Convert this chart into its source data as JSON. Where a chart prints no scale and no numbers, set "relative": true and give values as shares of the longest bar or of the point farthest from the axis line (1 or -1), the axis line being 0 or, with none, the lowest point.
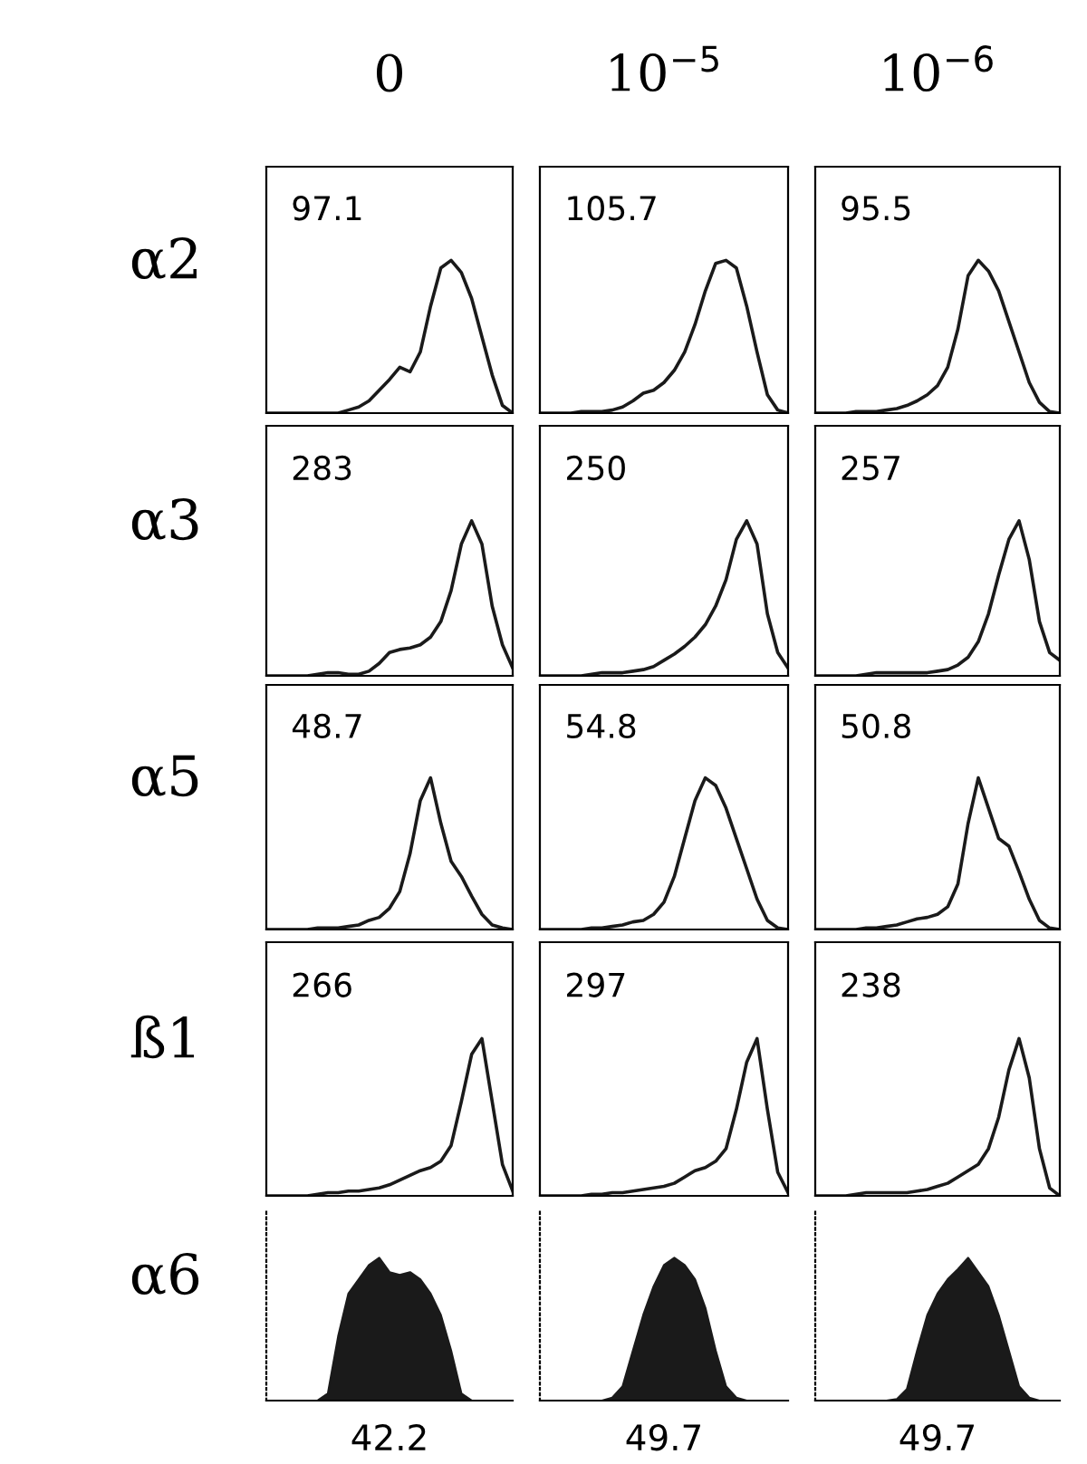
{
  "chart_data": [
    {
      "type": "line",
      "title": "0",
      "ylabel": "α2",
      "relative": true,
      "color": "#1a1a1a",
      "annotations": [
        "97.1"
      ],
      "categories": [
        null,
        null,
        null,
        null,
        null,
        null,
        null,
        null,
        null,
        null,
        null,
        null,
        null,
        null,
        null,
        null,
        null,
        null,
        null,
        null,
        null,
        null,
        null,
        null,
        null
      ],
      "values": [
        0,
        0,
        0,
        0,
        0,
        0,
        0,
        0,
        0.02,
        0.04,
        0.08,
        0.15,
        0.22,
        0.3,
        0.27,
        0.4,
        0.7,
        0.95,
        1,
        0.92,
        0.75,
        0.5,
        0.25,
        0.05,
        0
      ]
    },
    {
      "type": "line",
      "title": "10$^{−5}$",
      "relative": true,
      "color": "#1a1a1a",
      "annotations": [
        "105.7"
      ],
      "categories": [
        null,
        null,
        null,
        null,
        null,
        null,
        null,
        null,
        null,
        null,
        null,
        null,
        null,
        null,
        null,
        null,
        null,
        null,
        null,
        null,
        null,
        null,
        null,
        null,
        null
      ],
      "values": [
        0,
        0,
        0,
        0,
        0.01,
        0.01,
        0.01,
        0.02,
        0.04,
        0.08,
        0.13,
        0.15,
        0.2,
        0.28,
        0.4,
        0.58,
        0.8,
        0.98,
        1,
        0.95,
        0.7,
        0.4,
        0.12,
        0.02,
        0
      ]
    },
    {
      "type": "line",
      "title": "10$^{−6}$",
      "relative": true,
      "color": "#1a1a1a",
      "annotations": [
        "95.5"
      ],
      "categories": [
        null,
        null,
        null,
        null,
        null,
        null,
        null,
        null,
        null,
        null,
        null,
        null,
        null,
        null,
        null,
        null,
        null,
        null,
        null,
        null,
        null,
        null,
        null,
        null,
        null
      ],
      "values": [
        0,
        0,
        0,
        0,
        0.01,
        0.01,
        0.01,
        0.02,
        0.03,
        0.05,
        0.08,
        0.12,
        0.18,
        0.3,
        0.55,
        0.9,
        1,
        0.93,
        0.8,
        0.6,
        0.4,
        0.2,
        0.07,
        0.01,
        0
      ]
    },
    {
      "type": "line",
      "ylabel": "α3",
      "relative": true,
      "color": "#1a1a1a",
      "annotations": [
        "283"
      ],
      "categories": [
        null,
        null,
        null,
        null,
        null,
        null,
        null,
        null,
        null,
        null,
        null,
        null,
        null,
        null,
        null,
        null,
        null,
        null,
        null,
        null,
        null,
        null,
        null,
        null,
        null
      ],
      "values": [
        0,
        0,
        0,
        0,
        0,
        0.01,
        0.02,
        0.02,
        0.01,
        0.01,
        0.03,
        0.08,
        0.15,
        0.17,
        0.18,
        0.2,
        0.25,
        0.35,
        0.55,
        0.85,
        1,
        0.85,
        0.45,
        0.2,
        0.05
      ]
    },
    {
      "type": "line",
      "relative": true,
      "color": "#1a1a1a",
      "annotations": [
        "250"
      ],
      "categories": [
        null,
        null,
        null,
        null,
        null,
        null,
        null,
        null,
        null,
        null,
        null,
        null,
        null,
        null,
        null,
        null,
        null,
        null,
        null,
        null,
        null,
        null,
        null,
        null,
        null
      ],
      "values": [
        0,
        0,
        0,
        0,
        0,
        0.01,
        0.02,
        0.02,
        0.02,
        0.03,
        0.04,
        0.06,
        0.1,
        0.14,
        0.19,
        0.25,
        0.33,
        0.45,
        0.62,
        0.88,
        1,
        0.85,
        0.4,
        0.15,
        0.05
      ]
    },
    {
      "type": "line",
      "relative": true,
      "color": "#1a1a1a",
      "annotations": [
        "257"
      ],
      "categories": [
        null,
        null,
        null,
        null,
        null,
        null,
        null,
        null,
        null,
        null,
        null,
        null,
        null,
        null,
        null,
        null,
        null,
        null,
        null,
        null,
        null,
        null,
        null,
        null,
        null
      ],
      "values": [
        0,
        0,
        0,
        0,
        0,
        0.01,
        0.02,
        0.02,
        0.02,
        0.02,
        0.02,
        0.02,
        0.03,
        0.04,
        0.07,
        0.12,
        0.22,
        0.4,
        0.65,
        0.88,
        1,
        0.75,
        0.35,
        0.15,
        0.1
      ]
    },
    {
      "type": "line",
      "ylabel": "α5",
      "relative": true,
      "color": "#1a1a1a",
      "annotations": [
        "48.7"
      ],
      "categories": [
        null,
        null,
        null,
        null,
        null,
        null,
        null,
        null,
        null,
        null,
        null,
        null,
        null,
        null,
        null,
        null,
        null,
        null,
        null,
        null,
        null,
        null,
        null,
        null,
        null
      ],
      "values": [
        0,
        0,
        0,
        0,
        0,
        0.01,
        0.01,
        0.01,
        0.02,
        0.03,
        0.06,
        0.08,
        0.14,
        0.25,
        0.5,
        0.85,
        1,
        0.7,
        0.45,
        0.35,
        0.22,
        0.1,
        0.03,
        0.01,
        0
      ]
    },
    {
      "type": "line",
      "relative": true,
      "color": "#1a1a1a",
      "annotations": [
        "54.8"
      ],
      "categories": [
        null,
        null,
        null,
        null,
        null,
        null,
        null,
        null,
        null,
        null,
        null,
        null,
        null,
        null,
        null,
        null,
        null,
        null,
        null,
        null,
        null,
        null,
        null,
        null,
        null
      ],
      "values": [
        0,
        0,
        0,
        0,
        0,
        0.01,
        0.01,
        0.02,
        0.03,
        0.05,
        0.06,
        0.1,
        0.18,
        0.35,
        0.6,
        0.85,
        1,
        0.95,
        0.8,
        0.6,
        0.4,
        0.2,
        0.06,
        0.01,
        0
      ]
    },
    {
      "type": "line",
      "relative": true,
      "color": "#1a1a1a",
      "annotations": [
        "50.8"
      ],
      "categories": [
        null,
        null,
        null,
        null,
        null,
        null,
        null,
        null,
        null,
        null,
        null,
        null,
        null,
        null,
        null,
        null,
        null,
        null,
        null,
        null,
        null,
        null,
        null,
        null,
        null
      ],
      "values": [
        0,
        0,
        0,
        0,
        0,
        0.01,
        0.01,
        0.02,
        0.03,
        0.05,
        0.07,
        0.08,
        0.1,
        0.15,
        0.3,
        0.7,
        1,
        0.8,
        0.6,
        0.55,
        0.38,
        0.2,
        0.06,
        0.01,
        0
      ]
    },
    {
      "type": "line",
      "ylabel": "ß1",
      "relative": true,
      "color": "#1a1a1a",
      "annotations": [
        "266"
      ],
      "categories": [
        null,
        null,
        null,
        null,
        null,
        null,
        null,
        null,
        null,
        null,
        null,
        null,
        null,
        null,
        null,
        null,
        null,
        null,
        null,
        null,
        null,
        null,
        null,
        null,
        null
      ],
      "values": [
        0,
        0,
        0,
        0,
        0,
        0.01,
        0.02,
        0.02,
        0.03,
        0.03,
        0.04,
        0.05,
        0.07,
        0.1,
        0.13,
        0.16,
        0.18,
        0.22,
        0.32,
        0.6,
        0.9,
        1,
        0.6,
        0.2,
        0.03
      ]
    },
    {
      "type": "line",
      "relative": true,
      "color": "#1a1a1a",
      "annotations": [
        "297"
      ],
      "categories": [
        null,
        null,
        null,
        null,
        null,
        null,
        null,
        null,
        null,
        null,
        null,
        null,
        null,
        null,
        null,
        null,
        null,
        null,
        null,
        null,
        null,
        null,
        null,
        null,
        null
      ],
      "values": [
        0,
        0,
        0,
        0,
        0,
        0.01,
        0.01,
        0.02,
        0.02,
        0.03,
        0.04,
        0.05,
        0.06,
        0.08,
        0.12,
        0.16,
        0.18,
        0.22,
        0.3,
        0.55,
        0.85,
        1,
        0.55,
        0.15,
        0.02
      ]
    },
    {
      "type": "line",
      "relative": true,
      "color": "#1a1a1a",
      "annotations": [
        "238"
      ],
      "categories": [
        null,
        null,
        null,
        null,
        null,
        null,
        null,
        null,
        null,
        null,
        null,
        null,
        null,
        null,
        null,
        null,
        null,
        null,
        null,
        null,
        null,
        null,
        null,
        null,
        null
      ],
      "values": [
        0,
        0,
        0,
        0,
        0.01,
        0.02,
        0.02,
        0.02,
        0.02,
        0.02,
        0.03,
        0.04,
        0.06,
        0.08,
        0.12,
        0.16,
        0.2,
        0.3,
        0.5,
        0.8,
        1,
        0.75,
        0.3,
        0.05,
        0
      ]
    },
    {
      "type": "area",
      "ylabel": "α6",
      "relative": true,
      "color": "#1a1a1a",
      "annotations": [
        "42.2"
      ],
      "categories": [
        null,
        null,
        null,
        null,
        null,
        null,
        null,
        null,
        null,
        null,
        null,
        null,
        null,
        null,
        null,
        null,
        null,
        null,
        null,
        null,
        null,
        null,
        null,
        null,
        null
      ],
      "values": [
        0,
        0,
        0,
        0,
        0,
        0,
        0.05,
        0.45,
        0.75,
        0.85,
        0.95,
        1,
        0.9,
        0.88,
        0.9,
        0.85,
        0.75,
        0.6,
        0.35,
        0.05,
        0,
        0,
        0,
        0,
        0
      ]
    },
    {
      "type": "area",
      "relative": true,
      "color": "#1a1a1a",
      "annotations": [
        "49.7"
      ],
      "categories": [
        null,
        null,
        null,
        null,
        null,
        null,
        null,
        null,
        null,
        null,
        null,
        null,
        null,
        null,
        null,
        null,
        null,
        null,
        null,
        null,
        null,
        null,
        null,
        null,
        null
      ],
      "values": [
        0,
        0,
        0,
        0,
        0,
        0,
        0,
        0.02,
        0.1,
        0.35,
        0.6,
        0.8,
        0.95,
        1,
        0.95,
        0.85,
        0.65,
        0.35,
        0.1,
        0.02,
        0,
        0,
        0,
        0,
        0
      ]
    },
    {
      "type": "area",
      "relative": true,
      "color": "#1a1a1a",
      "annotations": [
        "49.7"
      ],
      "categories": [
        null,
        null,
        null,
        null,
        null,
        null,
        null,
        null,
        null,
        null,
        null,
        null,
        null,
        null,
        null,
        null,
        null,
        null,
        null,
        null,
        null,
        null,
        null,
        null,
        null
      ],
      "values": [
        0,
        0,
        0,
        0,
        0,
        0,
        0,
        0,
        0.01,
        0.08,
        0.35,
        0.6,
        0.75,
        0.85,
        0.92,
        1,
        0.9,
        0.8,
        0.6,
        0.35,
        0.1,
        0.02,
        0,
        0,
        0
      ]
    }
  ]
}
